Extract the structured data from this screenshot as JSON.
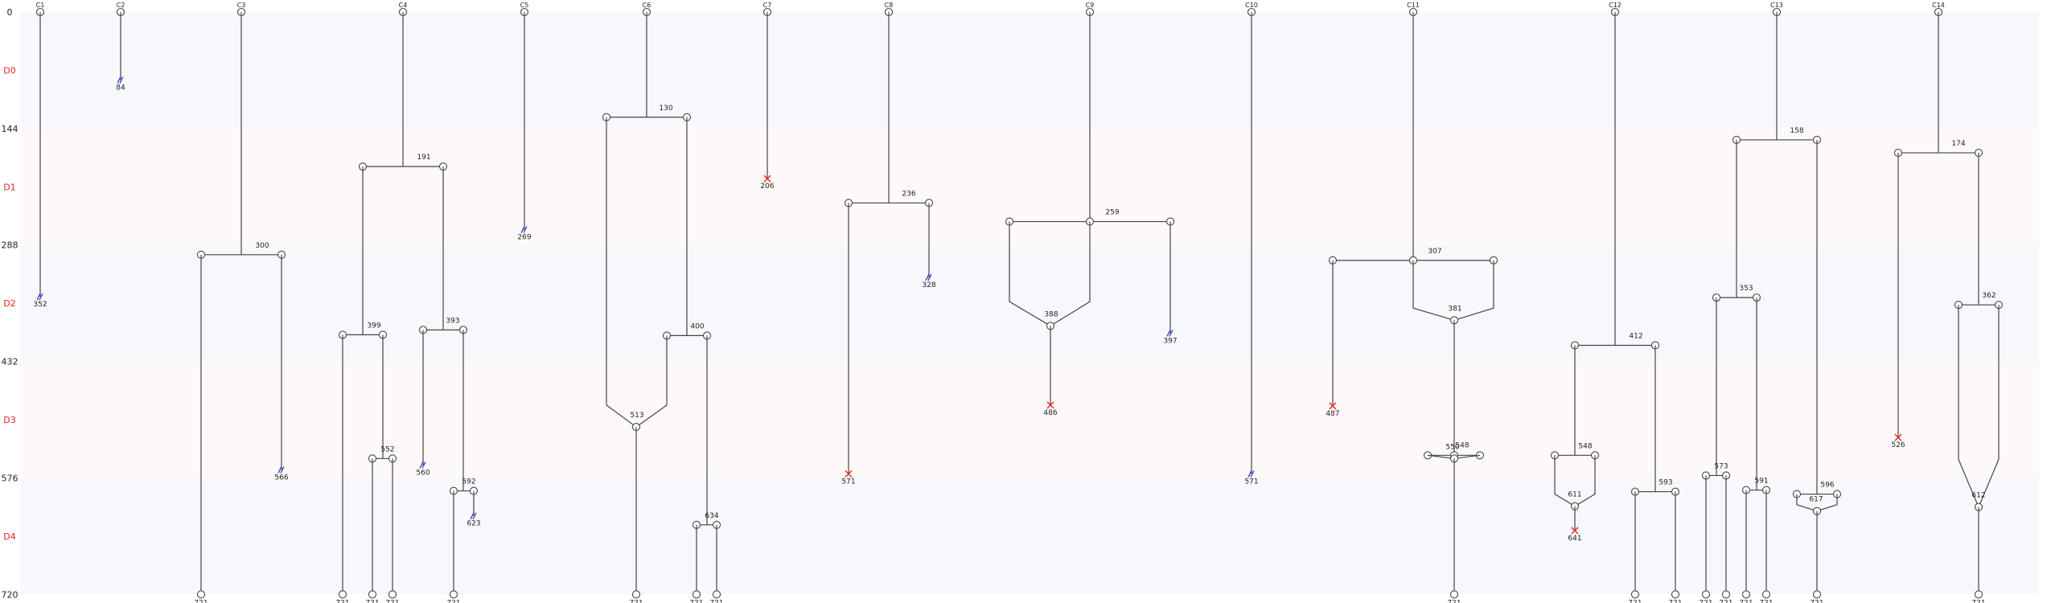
{
  "y_axis": {
    "ticks": [
      "0",
      "144",
      "288",
      "432",
      "576",
      "720"
    ],
    "bands": [
      "D0",
      "D1",
      "D2",
      "D3",
      "D4"
    ]
  },
  "colors": {
    "band_blue": "#f6f8fc",
    "band_pink": "#fdf9f8",
    "line": "#444444",
    "band_label": "#e8251c",
    "censor_mark": "#3a3ab8",
    "death_mark": "#e8251c"
  },
  "columns": [
    "C1",
    "C2",
    "C3",
    "C4",
    "C5",
    "C6",
    "C7",
    "C8",
    "C9",
    "C10",
    "C11",
    "C12",
    "C13",
    "C14"
  ],
  "branch_labels": [
    {
      "id": "b-c3-300",
      "text": "300"
    },
    {
      "id": "b-c4-191",
      "text": "191"
    },
    {
      "id": "b-c4-399",
      "text": "399"
    },
    {
      "id": "b-c4-393",
      "text": "393"
    },
    {
      "id": "b-c4-552",
      "text": "552"
    },
    {
      "id": "b-c4-592",
      "text": "592"
    },
    {
      "id": "b-c6-130",
      "text": "130"
    },
    {
      "id": "b-c6-400",
      "text": "400"
    },
    {
      "id": "b-c6-513",
      "text": "513"
    },
    {
      "id": "b-c6-634",
      "text": "634"
    },
    {
      "id": "b-c8-236",
      "text": "236"
    },
    {
      "id": "b-c9-259",
      "text": "259"
    },
    {
      "id": "b-c9-388",
      "text": "388"
    },
    {
      "id": "b-c11-307",
      "text": "307"
    },
    {
      "id": "b-c11-381",
      "text": "381"
    },
    {
      "id": "b-c11-548",
      "text": "548"
    },
    {
      "id": "b-c11-550",
      "text": "550"
    },
    {
      "id": "b-c12-412",
      "text": "412"
    },
    {
      "id": "b-c12-548",
      "text": "548"
    },
    {
      "id": "b-c12-611",
      "text": "611"
    },
    {
      "id": "b-c12-593",
      "text": "593"
    },
    {
      "id": "b-c13-158",
      "text": "158"
    },
    {
      "id": "b-c13-353",
      "text": "353"
    },
    {
      "id": "b-c13-573",
      "text": "573"
    },
    {
      "id": "b-c13-591",
      "text": "591"
    },
    {
      "id": "b-c13-596",
      "text": "596"
    },
    {
      "id": "b-c13-617",
      "text": "617"
    },
    {
      "id": "b-c14-174",
      "text": "174"
    },
    {
      "id": "b-c14-362",
      "text": "362"
    },
    {
      "id": "b-c14-612",
      "text": "612"
    }
  ],
  "end_labels": [
    {
      "id": "e-c2",
      "text": "84"
    },
    {
      "id": "e-c1",
      "text": "352"
    },
    {
      "id": "e-c3r",
      "text": "566"
    },
    {
      "id": "e-c3l",
      "text": "721"
    },
    {
      "id": "e-c4a",
      "text": "721"
    },
    {
      "id": "e-c4b",
      "text": "721"
    },
    {
      "id": "e-c4c",
      "text": "721"
    },
    {
      "id": "e-c4d",
      "text": "560"
    },
    {
      "id": "e-c4e",
      "text": "721"
    },
    {
      "id": "e-c4f",
      "text": "623"
    },
    {
      "id": "e-c5",
      "text": "269"
    },
    {
      "id": "e-c6a",
      "text": "721"
    },
    {
      "id": "e-c6b",
      "text": "721"
    },
    {
      "id": "e-c6c",
      "text": "721"
    },
    {
      "id": "e-c7",
      "text": "206"
    },
    {
      "id": "e-c8l",
      "text": "571"
    },
    {
      "id": "e-c8r",
      "text": "328"
    },
    {
      "id": "e-c9a",
      "text": "486"
    },
    {
      "id": "e-c9b",
      "text": "397"
    },
    {
      "id": "e-c10",
      "text": "571"
    },
    {
      "id": "e-c11l",
      "text": "487"
    },
    {
      "id": "e-c11a",
      "text": "721"
    },
    {
      "id": "e-c12a",
      "text": "641"
    },
    {
      "id": "e-c12b",
      "text": "721"
    },
    {
      "id": "e-c12c",
      "text": "721"
    },
    {
      "id": "e-c13a",
      "text": "721"
    },
    {
      "id": "e-c13b",
      "text": "721"
    },
    {
      "id": "e-c13c",
      "text": "721"
    },
    {
      "id": "e-c13d",
      "text": "721"
    },
    {
      "id": "e-c13e",
      "text": "721"
    },
    {
      "id": "e-c14l",
      "text": "526"
    },
    {
      "id": "e-c14a",
      "text": "721"
    }
  ]
}
